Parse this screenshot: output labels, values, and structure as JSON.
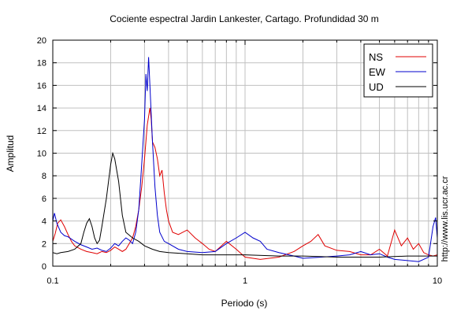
{
  "chart_data": {
    "type": "line",
    "title": "Cociente espectral Jardin Lankester, Cartago. Profundidad 30 m",
    "xlabel": "Periodo (s)",
    "ylabel": "Amplitud",
    "x_scale": "log",
    "xlim": [
      0.1,
      10
    ],
    "ylim": [
      0,
      20
    ],
    "x_ticks": [
      0.1,
      1,
      10
    ],
    "x_tick_labels": [
      "0.1",
      "1",
      "10"
    ],
    "y_ticks": [
      0,
      2,
      4,
      6,
      8,
      10,
      12,
      14,
      16,
      18,
      20
    ],
    "y_tick_labels": [
      "0",
      "2",
      "4",
      "6",
      "8",
      "10",
      "12",
      "14",
      "16",
      "18",
      "20"
    ],
    "grid": true,
    "legend_position": "top-right",
    "side_note": "http://www.lis.ucr.ac.cr",
    "series": [
      {
        "name": "NS",
        "color": "#e00000",
        "points": [
          [
            0.1,
            2.2
          ],
          [
            0.103,
            2.9
          ],
          [
            0.106,
            3.8
          ],
          [
            0.11,
            4.1
          ],
          [
            0.115,
            3.5
          ],
          [
            0.12,
            2.8
          ],
          [
            0.125,
            2.2
          ],
          [
            0.13,
            1.8
          ],
          [
            0.14,
            1.5
          ],
          [
            0.15,
            1.3
          ],
          [
            0.16,
            1.2
          ],
          [
            0.17,
            1.1
          ],
          [
            0.18,
            1.3
          ],
          [
            0.19,
            1.2
          ],
          [
            0.2,
            1.4
          ],
          [
            0.21,
            1.7
          ],
          [
            0.22,
            1.5
          ],
          [
            0.23,
            1.3
          ],
          [
            0.24,
            1.5
          ],
          [
            0.25,
            2.0
          ],
          [
            0.26,
            2.5
          ],
          [
            0.27,
            3.5
          ],
          [
            0.28,
            5.0
          ],
          [
            0.29,
            7.0
          ],
          [
            0.3,
            9.5
          ],
          [
            0.31,
            12.5
          ],
          [
            0.32,
            14.0
          ],
          [
            0.325,
            13.0
          ],
          [
            0.33,
            11.0
          ],
          [
            0.34,
            10.5
          ],
          [
            0.35,
            9.5
          ],
          [
            0.36,
            8.0
          ],
          [
            0.37,
            8.5
          ],
          [
            0.38,
            6.5
          ],
          [
            0.39,
            5.0
          ],
          [
            0.4,
            4.0
          ],
          [
            0.42,
            3.0
          ],
          [
            0.45,
            2.8
          ],
          [
            0.5,
            3.2
          ],
          [
            0.55,
            2.5
          ],
          [
            0.6,
            2.0
          ],
          [
            0.65,
            1.5
          ],
          [
            0.7,
            1.3
          ],
          [
            0.8,
            2.2
          ],
          [
            0.9,
            1.5
          ],
          [
            1.0,
            0.8
          ],
          [
            1.2,
            0.6
          ],
          [
            1.5,
            0.8
          ],
          [
            1.8,
            1.3
          ],
          [
            2.0,
            1.8
          ],
          [
            2.2,
            2.2
          ],
          [
            2.4,
            2.8
          ],
          [
            2.6,
            1.8
          ],
          [
            3.0,
            1.4
          ],
          [
            3.5,
            1.3
          ],
          [
            4.0,
            1.0
          ],
          [
            4.5,
            1.0
          ],
          [
            5.0,
            1.5
          ],
          [
            5.5,
            0.9
          ],
          [
            6.0,
            3.2
          ],
          [
            6.5,
            1.8
          ],
          [
            7.0,
            2.5
          ],
          [
            7.5,
            1.5
          ],
          [
            8.0,
            2.0
          ],
          [
            8.5,
            1.2
          ],
          [
            9.0,
            1.0
          ],
          [
            9.5,
            0.9
          ],
          [
            10.0,
            1.0
          ]
        ]
      },
      {
        "name": "EW",
        "color": "#0000cc",
        "points": [
          [
            0.1,
            4.0
          ],
          [
            0.102,
            4.7
          ],
          [
            0.105,
            3.8
          ],
          [
            0.11,
            3.0
          ],
          [
            0.115,
            2.7
          ],
          [
            0.12,
            2.6
          ],
          [
            0.13,
            2.2
          ],
          [
            0.14,
            1.9
          ],
          [
            0.15,
            1.7
          ],
          [
            0.16,
            1.5
          ],
          [
            0.17,
            1.6
          ],
          [
            0.18,
            1.4
          ],
          [
            0.19,
            1.3
          ],
          [
            0.2,
            1.6
          ],
          [
            0.21,
            2.0
          ],
          [
            0.22,
            1.8
          ],
          [
            0.23,
            2.2
          ],
          [
            0.24,
            2.5
          ],
          [
            0.25,
            2.3
          ],
          [
            0.26,
            2.0
          ],
          [
            0.27,
            3.0
          ],
          [
            0.28,
            5.0
          ],
          [
            0.29,
            9.0
          ],
          [
            0.3,
            13.0
          ],
          [
            0.305,
            17.0
          ],
          [
            0.31,
            15.5
          ],
          [
            0.315,
            18.5
          ],
          [
            0.32,
            16.0
          ],
          [
            0.33,
            11.0
          ],
          [
            0.34,
            7.0
          ],
          [
            0.35,
            4.5
          ],
          [
            0.36,
            3.0
          ],
          [
            0.38,
            2.2
          ],
          [
            0.4,
            2.0
          ],
          [
            0.45,
            1.5
          ],
          [
            0.5,
            1.3
          ],
          [
            0.6,
            1.2
          ],
          [
            0.7,
            1.3
          ],
          [
            0.8,
            2.0
          ],
          [
            0.9,
            2.5
          ],
          [
            1.0,
            3.0
          ],
          [
            1.1,
            2.5
          ],
          [
            1.2,
            2.2
          ],
          [
            1.3,
            1.5
          ],
          [
            1.5,
            1.2
          ],
          [
            1.8,
            0.9
          ],
          [
            2.0,
            0.7
          ],
          [
            2.5,
            0.8
          ],
          [
            3.0,
            0.9
          ],
          [
            3.5,
            1.0
          ],
          [
            4.0,
            1.3
          ],
          [
            4.5,
            1.0
          ],
          [
            5.0,
            1.1
          ],
          [
            5.5,
            0.8
          ],
          [
            6.0,
            0.6
          ],
          [
            7.0,
            0.5
          ],
          [
            8.0,
            0.4
          ],
          [
            9.0,
            0.8
          ],
          [
            9.5,
            3.5
          ],
          [
            9.8,
            4.3
          ],
          [
            10.0,
            2.5
          ]
        ]
      },
      {
        "name": "UD",
        "color": "#000000",
        "points": [
          [
            0.1,
            1.2
          ],
          [
            0.105,
            1.1
          ],
          [
            0.11,
            1.2
          ],
          [
            0.12,
            1.3
          ],
          [
            0.13,
            1.5
          ],
          [
            0.14,
            2.0
          ],
          [
            0.145,
            3.0
          ],
          [
            0.15,
            3.8
          ],
          [
            0.155,
            4.2
          ],
          [
            0.16,
            3.5
          ],
          [
            0.165,
            2.5
          ],
          [
            0.17,
            2.0
          ],
          [
            0.175,
            2.3
          ],
          [
            0.18,
            3.5
          ],
          [
            0.19,
            6.0
          ],
          [
            0.2,
            9.0
          ],
          [
            0.205,
            10.0
          ],
          [
            0.21,
            9.5
          ],
          [
            0.22,
            7.5
          ],
          [
            0.23,
            4.5
          ],
          [
            0.24,
            3.0
          ],
          [
            0.26,
            2.5
          ],
          [
            0.28,
            2.2
          ],
          [
            0.3,
            1.8
          ],
          [
            0.33,
            1.5
          ],
          [
            0.36,
            1.3
          ],
          [
            0.4,
            1.2
          ],
          [
            0.5,
            1.1
          ],
          [
            0.6,
            1.0
          ],
          [
            0.7,
            1.0
          ],
          [
            0.8,
            1.0
          ],
          [
            1.0,
            1.0
          ],
          [
            1.5,
            0.9
          ],
          [
            2.0,
            0.9
          ],
          [
            3.0,
            0.8
          ],
          [
            5.0,
            0.8
          ],
          [
            7.0,
            0.9
          ],
          [
            10.0,
            0.9
          ]
        ]
      }
    ]
  }
}
